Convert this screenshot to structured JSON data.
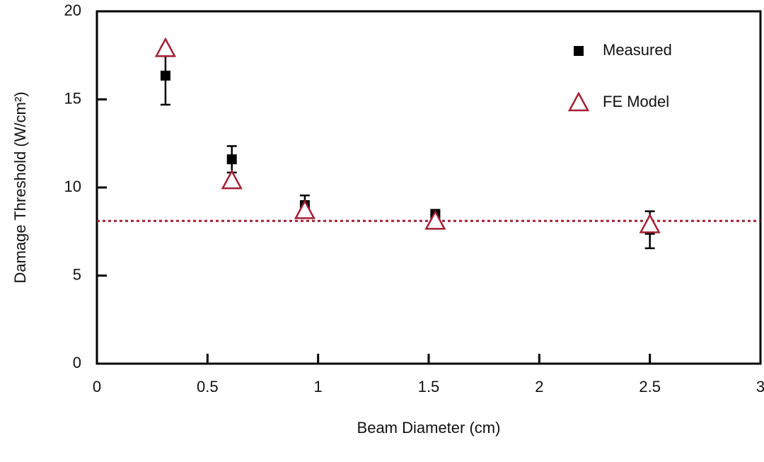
{
  "chart_data": {
    "type": "scatter",
    "x_label": "Beam Diameter (cm)",
    "y_label": "Damage Threshold (W/cm²)",
    "xlim": [
      0,
      3
    ],
    "ylim": [
      0,
      20
    ],
    "xticks": [
      0,
      0.5,
      1,
      1.5,
      2,
      2.5,
      3
    ],
    "yticks": [
      0,
      5,
      10,
      15,
      20
    ],
    "legend": "upper right",
    "series": [
      {
        "name": "Measured",
        "color": "#000000",
        "marker": "square",
        "x": [
          0.31,
          0.61,
          0.94,
          1.53,
          2.5
        ],
        "values": [
          16.35,
          11.6,
          9.0,
          8.5,
          7.6
        ],
        "errors": [
          1.65,
          0.75,
          0.55,
          0.1,
          1.05
        ]
      },
      {
        "name": "FE Model",
        "color": "#a31f34",
        "marker": "triangle",
        "x": [
          0.31,
          0.61,
          0.94,
          1.53,
          2.5
        ],
        "values": [
          17.9,
          10.4,
          8.7,
          8.1,
          7.9
        ]
      }
    ],
    "hline": {
      "value": 8.1,
      "color": "#a31f34",
      "dash": "dotted"
    }
  }
}
